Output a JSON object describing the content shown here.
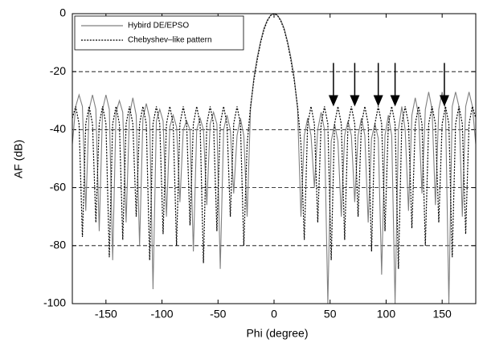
{
  "chart_data": {
    "type": "line",
    "xlabel": "Phi (degree)",
    "ylabel": "AF (dB)",
    "xlim": [
      -180,
      180
    ],
    "ylim": [
      -100,
      0
    ],
    "xticks": [
      -150,
      -100,
      -50,
      0,
      50,
      100,
      150
    ],
    "yticks": [
      0,
      -20,
      -40,
      -60,
      -80,
      -100
    ],
    "grid": true,
    "legend": "upper left",
    "x": [
      -180,
      -177,
      -174,
      -171,
      -168,
      -165,
      -162,
      -159,
      -156,
      -153,
      -150,
      -147,
      -144,
      -141,
      -138,
      -135,
      -132,
      -129,
      -126,
      -123,
      -120,
      -117,
      -114,
      -111,
      -108,
      -105,
      -102,
      -99,
      -96,
      -93,
      -90,
      -87,
      -84,
      -81,
      -78,
      -75,
      -72,
      -69,
      -66,
      -63,
      -60,
      -57,
      -54,
      -51,
      -48,
      -45,
      -42,
      -39,
      -36,
      -33,
      -30,
      -27,
      -24,
      -21,
      -18,
      -15,
      -12,
      -9,
      -6,
      -3,
      0,
      3,
      6,
      9,
      12,
      15,
      18,
      21,
      24,
      27,
      30,
      33,
      36,
      39,
      42,
      45,
      48,
      51,
      54,
      57,
      60,
      63,
      66,
      69,
      72,
      75,
      78,
      81,
      84,
      87,
      90,
      93,
      96,
      99,
      102,
      105,
      108,
      111,
      114,
      117,
      120,
      123,
      126,
      129,
      132,
      135,
      138,
      141,
      144,
      147,
      150,
      153,
      156,
      159,
      162,
      165,
      168,
      171,
      174,
      177,
      180
    ],
    "series": [
      {
        "name": "Hybird DE/EPSO",
        "color": "#808080",
        "dash": false,
        "values": [
          -45,
          -32,
          -28,
          -32,
          -68,
          -33,
          -28,
          -33,
          -75,
          -33,
          -28,
          -33,
          -85,
          -34,
          -30,
          -34,
          -72,
          -35,
          -29,
          -35,
          -80,
          -36,
          -31,
          -36,
          -95,
          -37,
          -33,
          -37,
          -70,
          -39,
          -35,
          -39,
          -65,
          -40,
          -37,
          -40,
          -82,
          -40,
          -36,
          -40,
          -66,
          -38,
          -34,
          -38,
          -88,
          -40,
          -35,
          -40,
          -62,
          -42,
          -36,
          -42,
          -70,
          -33,
          -22,
          -15,
          -9.5,
          -5,
          -2.2,
          -0.5,
          0,
          -0.5,
          -2.2,
          -5,
          -9.5,
          -15,
          -22,
          -33,
          -70,
          -42,
          -36,
          -42,
          -60,
          -40,
          -34,
          -40,
          -100,
          -44,
          -38,
          -44,
          -70,
          -42,
          -37,
          -42,
          -65,
          -42,
          -36,
          -42,
          -72,
          -43,
          -38,
          -43,
          -90,
          -42,
          -35,
          -42,
          -100,
          -40,
          -32,
          -40,
          -68,
          -35,
          -29,
          -35,
          -62,
          -33,
          -27,
          -33,
          -66,
          -33,
          -27,
          -33,
          -100,
          -32,
          -27,
          -32,
          -70,
          -32,
          -27,
          -32,
          -45
        ]
      },
      {
        "name": "Chebyshev–like pattern",
        "color": "#000000",
        "dash": true,
        "values": [
          -36,
          -32,
          -38,
          -77,
          -38,
          -32,
          -38,
          -72,
          -38,
          -32,
          -38,
          -84,
          -38,
          -32,
          -38,
          -78,
          -38,
          -32,
          -38,
          -70,
          -38,
          -32,
          -38,
          -85,
          -38,
          -32,
          -38,
          -76,
          -38,
          -32,
          -38,
          -80,
          -38,
          -32,
          -38,
          -73,
          -38,
          -32,
          -38,
          -86,
          -38,
          -32,
          -38,
          -75,
          -38,
          -32,
          -38,
          -70,
          -38,
          -32,
          -38,
          -80,
          -45,
          -32,
          -23,
          -16,
          -10,
          -5.5,
          -2.5,
          -0.6,
          0,
          -0.6,
          -2.5,
          -5.5,
          -10,
          -16,
          -23,
          -32,
          -45,
          -78,
          -38,
          -32,
          -38,
          -72,
          -38,
          -32,
          -38,
          -85,
          -38,
          -32,
          -38,
          -78,
          -38,
          -32,
          -38,
          -70,
          -38,
          -32,
          -38,
          -82,
          -38,
          -32,
          -38,
          -75,
          -38,
          -32,
          -38,
          -88,
          -38,
          -32,
          -38,
          -74,
          -38,
          -32,
          -38,
          -80,
          -38,
          -32,
          -38,
          -72,
          -38,
          -32,
          -38,
          -84,
          -38,
          -32,
          -38,
          -76,
          -38,
          -32,
          -36
        ]
      }
    ],
    "arrows": [
      {
        "x": 53,
        "from": -17,
        "to": -32
      },
      {
        "x": 72,
        "from": -17,
        "to": -32
      },
      {
        "x": 93,
        "from": -17,
        "to": -32
      },
      {
        "x": 108,
        "from": -17,
        "to": -32
      },
      {
        "x": 152,
        "from": -17,
        "to": -32
      }
    ]
  }
}
